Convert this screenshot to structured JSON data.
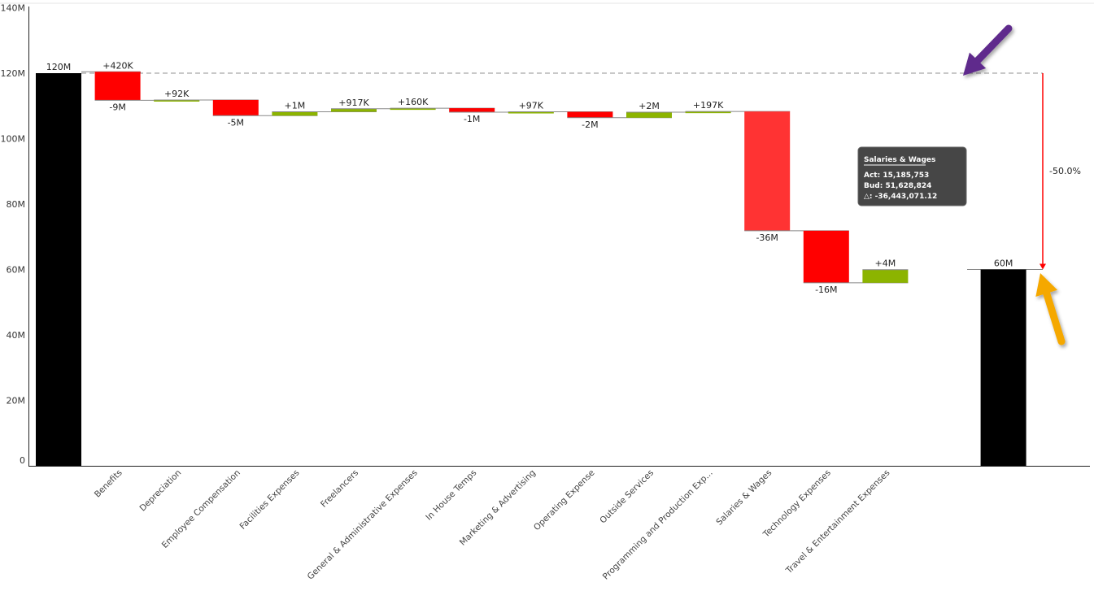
{
  "chart_data": {
    "type": "waterfall",
    "title": "",
    "xlabel": "",
    "ylabel": "",
    "ylim": [
      0,
      140
    ],
    "unit": "M",
    "yticks": [
      "0",
      "20M",
      "40M",
      "60M",
      "80M",
      "100M",
      "120M",
      "140M"
    ],
    "grid": false,
    "start": {
      "value": 120,
      "label": "120M"
    },
    "end": {
      "value": 60,
      "label": "60M"
    },
    "categories": [
      "Benefits",
      "Depreciation",
      "Employee Compensation",
      "Facilities Expenses",
      "Freelancers",
      "General & Administrative Expenses",
      "In House Temps",
      "Marketing & Advertising",
      "Operating Expense",
      "Outside Services",
      "Programming and Production Exp...",
      "Salaries & Wages",
      "Technology Expenses",
      "Travel & Entertainment Expenses"
    ],
    "first_delta": {
      "value": 0.42,
      "label": "+420K"
    },
    "deltas": [
      -8.7,
      0.092,
      -4.8,
      1.2,
      0.917,
      0.16,
      -1.2,
      0.097,
      -1.8,
      1.7,
      0.197,
      -36.443,
      -15.9,
      4.0
    ],
    "delta_labels": [
      "-9M",
      "+92K",
      "-5M",
      "+1M",
      "+917K",
      "+160K",
      "-1M",
      "+97K",
      "-2M",
      "+2M",
      "+197K",
      "-36M",
      "-16M",
      "+4M"
    ],
    "variance_label": "-50.0%",
    "colors": {
      "total": "#000000",
      "negative": "#FF0000",
      "negative_hover": "#FF3333",
      "positive": "#8CB400",
      "variance_arrow": "#FF0000",
      "annotation_purple": "#5E2A8C",
      "annotation_orange": "#F5A800"
    },
    "tooltip": {
      "title": "Salaries & Wages",
      "lines": [
        "Act: 15,185,753",
        "Bud: 51,628,824",
        "△: -36,443,071.12"
      ]
    }
  }
}
